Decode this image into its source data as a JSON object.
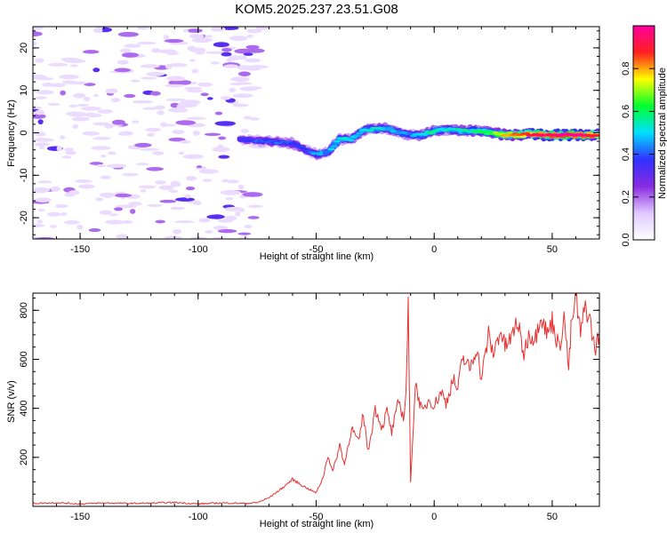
{
  "title": "KOM5.2025.237.23.51.G08",
  "colors": {
    "snr_line": "#e83030",
    "axes": "#000000"
  },
  "chart_data": [
    {
      "type": "heatmap",
      "xlabel": "Height of straight line (km)",
      "ylabel": "Frequency (Hz)",
      "xlim": [
        -170,
        70
      ],
      "ylim": [
        -25,
        25
      ],
      "x_ticks": [
        "-150",
        "-100",
        "-50",
        "0",
        "50"
      ],
      "y_ticks": [
        "-20",
        "-10",
        "0",
        "10",
        "20"
      ],
      "colorbar": {
        "label": "Normalized spectral amplitude",
        "range": [
          0,
          1
        ],
        "ticks": [
          "0.0",
          "0.2",
          "0.4",
          "0.6",
          "0.8"
        ],
        "colors": [
          "#ffffff",
          "#e0c8ff",
          "#8a2be2",
          "#3030ff",
          "#00e0ff",
          "#00ff30",
          "#ffff00",
          "#ff2020",
          "#ff00a0"
        ]
      },
      "noise_region_height_range": [
        -170,
        -73
      ],
      "signal_ridge": {
        "height": [
          -82,
          -70,
          -60,
          -55,
          -50,
          -45,
          -40,
          -35,
          -30,
          -25,
          -20,
          -15,
          -10,
          -5,
          0,
          5,
          10,
          15,
          20,
          25,
          30,
          35,
          40,
          45,
          50,
          55,
          60,
          65,
          70
        ],
        "frequency": [
          -1.5,
          -2,
          -2.5,
          -4,
          -5,
          -4.5,
          -1.5,
          -1.5,
          0.5,
          1,
          1,
          0,
          -0.5,
          -0.5,
          0.5,
          0.8,
          0.5,
          0.5,
          0.3,
          0,
          -0.5,
          -0.5,
          -0.3,
          -0.5,
          -0.5,
          -0.5,
          -0.5,
          -0.5,
          -0.5
        ],
        "amplitude": [
          0.35,
          0.4,
          0.4,
          0.35,
          0.45,
          0.45,
          0.5,
          0.5,
          0.5,
          0.5,
          0.5,
          0.45,
          0.45,
          0.5,
          0.55,
          0.5,
          0.55,
          0.55,
          0.6,
          0.65,
          0.8,
          0.85,
          0.9,
          0.95,
          0.95,
          1.0,
          1.0,
          0.95,
          0.9
        ]
      }
    },
    {
      "type": "line",
      "xlabel": "Height of straight line (km)",
      "ylabel": "SNR (v/v)",
      "xlim": [
        -170,
        70
      ],
      "ylim": [
        0,
        870
      ],
      "x_ticks": [
        "-150",
        "-100",
        "-50",
        "0",
        "50"
      ],
      "y_ticks": [
        "200",
        "400",
        "600",
        "800"
      ],
      "x": [
        -170,
        -160,
        -150,
        -140,
        -130,
        -120,
        -110,
        -100,
        -90,
        -80,
        -75,
        -70,
        -65,
        -60,
        -55,
        -50,
        -47,
        -45,
        -43,
        -40,
        -38,
        -35,
        -32,
        -30,
        -28,
        -25,
        -22,
        -20,
        -18,
        -15,
        -13,
        -12,
        -11,
        -10,
        -8,
        -5,
        -2,
        0,
        3,
        5,
        8,
        10,
        12,
        15,
        18,
        20,
        23,
        25,
        28,
        30,
        33,
        35,
        38,
        40,
        43,
        45,
        48,
        50,
        53,
        55,
        57,
        58,
        60,
        62,
        64,
        66,
        68,
        70
      ],
      "y": [
        12,
        15,
        10,
        14,
        12,
        13,
        16,
        10,
        14,
        12,
        15,
        35,
        70,
        110,
        80,
        55,
        120,
        210,
        140,
        250,
        170,
        320,
        260,
        380,
        220,
        400,
        320,
        390,
        300,
        430,
        360,
        450,
        810,
        100,
        500,
        380,
        440,
        410,
        470,
        420,
        520,
        470,
        610,
        560,
        650,
        520,
        700,
        620,
        720,
        650,
        690,
        760,
        620,
        700,
        690,
        790,
        700,
        760,
        640,
        780,
        560,
        720,
        860,
        700,
        820,
        760,
        640,
        700
      ]
    }
  ]
}
